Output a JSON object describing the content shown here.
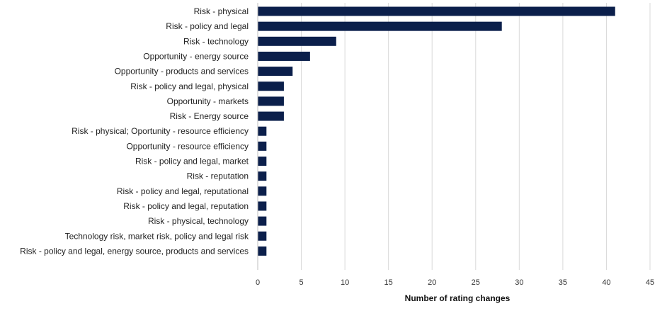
{
  "chart_data": {
    "type": "bar",
    "orientation": "horizontal",
    "title": "",
    "xlabel": "Number of rating changes",
    "ylabel": "",
    "xlim": [
      0,
      45
    ],
    "xticks": [
      0,
      5,
      10,
      15,
      20,
      25,
      30,
      35,
      40,
      45
    ],
    "grid": "vertical",
    "legend": "none",
    "bar_color": "#0b1f4b",
    "categories": [
      "Risk - physical",
      "Risk - policy and legal",
      "Risk - technology",
      "Opportunity - energy source",
      "Opportunity -  products and services",
      "Risk - policy and legal, physical",
      "Opportunity - markets",
      "Risk - Energy source",
      "Risk - physical; Oportunity - resource efficiency",
      "Opportunity - resource efficiency",
      "Risk - policy and legal, market",
      "Risk - reputation",
      "Risk - policy and legal, reputational",
      "Risk - policy and legal, reputation",
      "Risk - physical, technology",
      "Technology risk, market risk, policy and legal risk",
      "Risk - policy and legal, energy source, products and services"
    ],
    "values": [
      41,
      28,
      9,
      6,
      4,
      3,
      3,
      3,
      1,
      1,
      1,
      1,
      1,
      1,
      1,
      1,
      1
    ]
  }
}
